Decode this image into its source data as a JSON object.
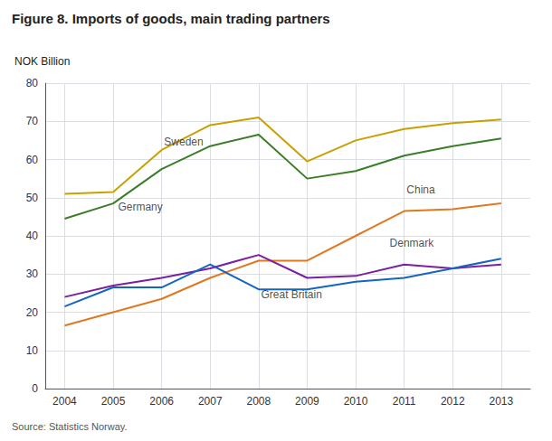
{
  "chart_data": {
    "type": "line",
    "title": "Figure 8. Imports of goods, main trading partners",
    "y_label": "NOK Billion",
    "x": [
      2004,
      2005,
      2006,
      2007,
      2008,
      2009,
      2010,
      2011,
      2012,
      2013
    ],
    "series": [
      {
        "name": "Sweden",
        "color": "#C8A000",
        "values": [
          51.0,
          51.5,
          62.5,
          69.0,
          71.0,
          59.5,
          65.0,
          68.0,
          69.5,
          70.5
        ]
      },
      {
        "name": "Germany",
        "color": "#3A7D28",
        "values": [
          44.5,
          48.5,
          57.5,
          63.5,
          66.5,
          55.0,
          57.0,
          61.0,
          63.5,
          65.5
        ]
      },
      {
        "name": "China",
        "color": "#E07820",
        "values": [
          16.5,
          20.0,
          23.5,
          29.0,
          33.5,
          33.5,
          40.0,
          46.5,
          47.0,
          48.5
        ]
      },
      {
        "name": "Denmark",
        "color": "#7B1FA2",
        "values": [
          24.0,
          27.0,
          29.0,
          31.5,
          35.0,
          29.0,
          29.5,
          32.5,
          31.5,
          32.5
        ]
      },
      {
        "name": "Great Britain",
        "color": "#1565C0",
        "values": [
          21.5,
          26.5,
          26.5,
          32.5,
          26.0,
          26.0,
          28.0,
          29.0,
          31.5,
          34.0
        ]
      }
    ],
    "annotations": [
      {
        "text": "Sweden",
        "x": 2006.05,
        "y": 63.0
      },
      {
        "text": "Germany",
        "x": 2005.1,
        "y": 46.0
      },
      {
        "text": "China",
        "x": 2011.05,
        "y": 50.5
      },
      {
        "text": "Denmark",
        "x": 2010.7,
        "y": 36.5
      },
      {
        "text": "Great Britain",
        "x": 2008.05,
        "y": 23.0
      },
      {
        "text": "Source: Statistics Norway."
      }
    ],
    "xlim": [
      2003.6,
      2013.6
    ],
    "xticks": [
      2004,
      2005,
      2006,
      2007,
      2008,
      2009,
      2010,
      2011,
      2012,
      2013
    ],
    "ylim": [
      0,
      80
    ],
    "yticks": [
      0,
      10,
      20,
      30,
      40,
      50,
      60,
      70,
      80
    ],
    "grid": true
  }
}
